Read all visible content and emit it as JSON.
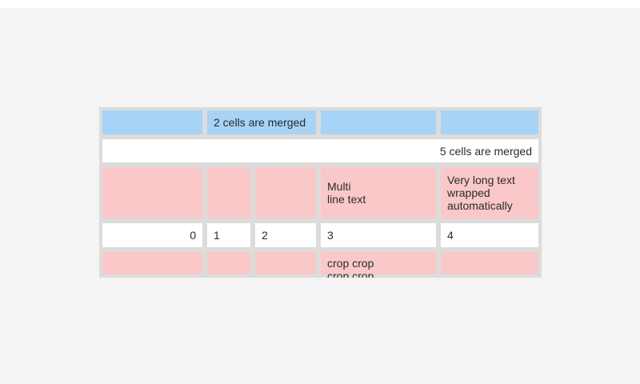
{
  "colors": {
    "page_bg": "#f4f4f4",
    "top_strip": "#ffffff",
    "table_bg": "#dcdcdc",
    "cell_blue": "#a6d3f6",
    "cell_pink": "#fac8c8",
    "cell_white": "#ffffff",
    "text": "#2b2b2b"
  },
  "table": {
    "cells": {
      "r0_merged": "2 cells are merged",
      "r1_merged": "5 cells are merged",
      "r2_multiline": "Multi\nline text",
      "r2_wrapped": "Very long text wrapped automatically",
      "r3": [
        "0",
        "1",
        "2",
        "3",
        "4"
      ],
      "r4_crop": "crop crop crop crop"
    }
  }
}
